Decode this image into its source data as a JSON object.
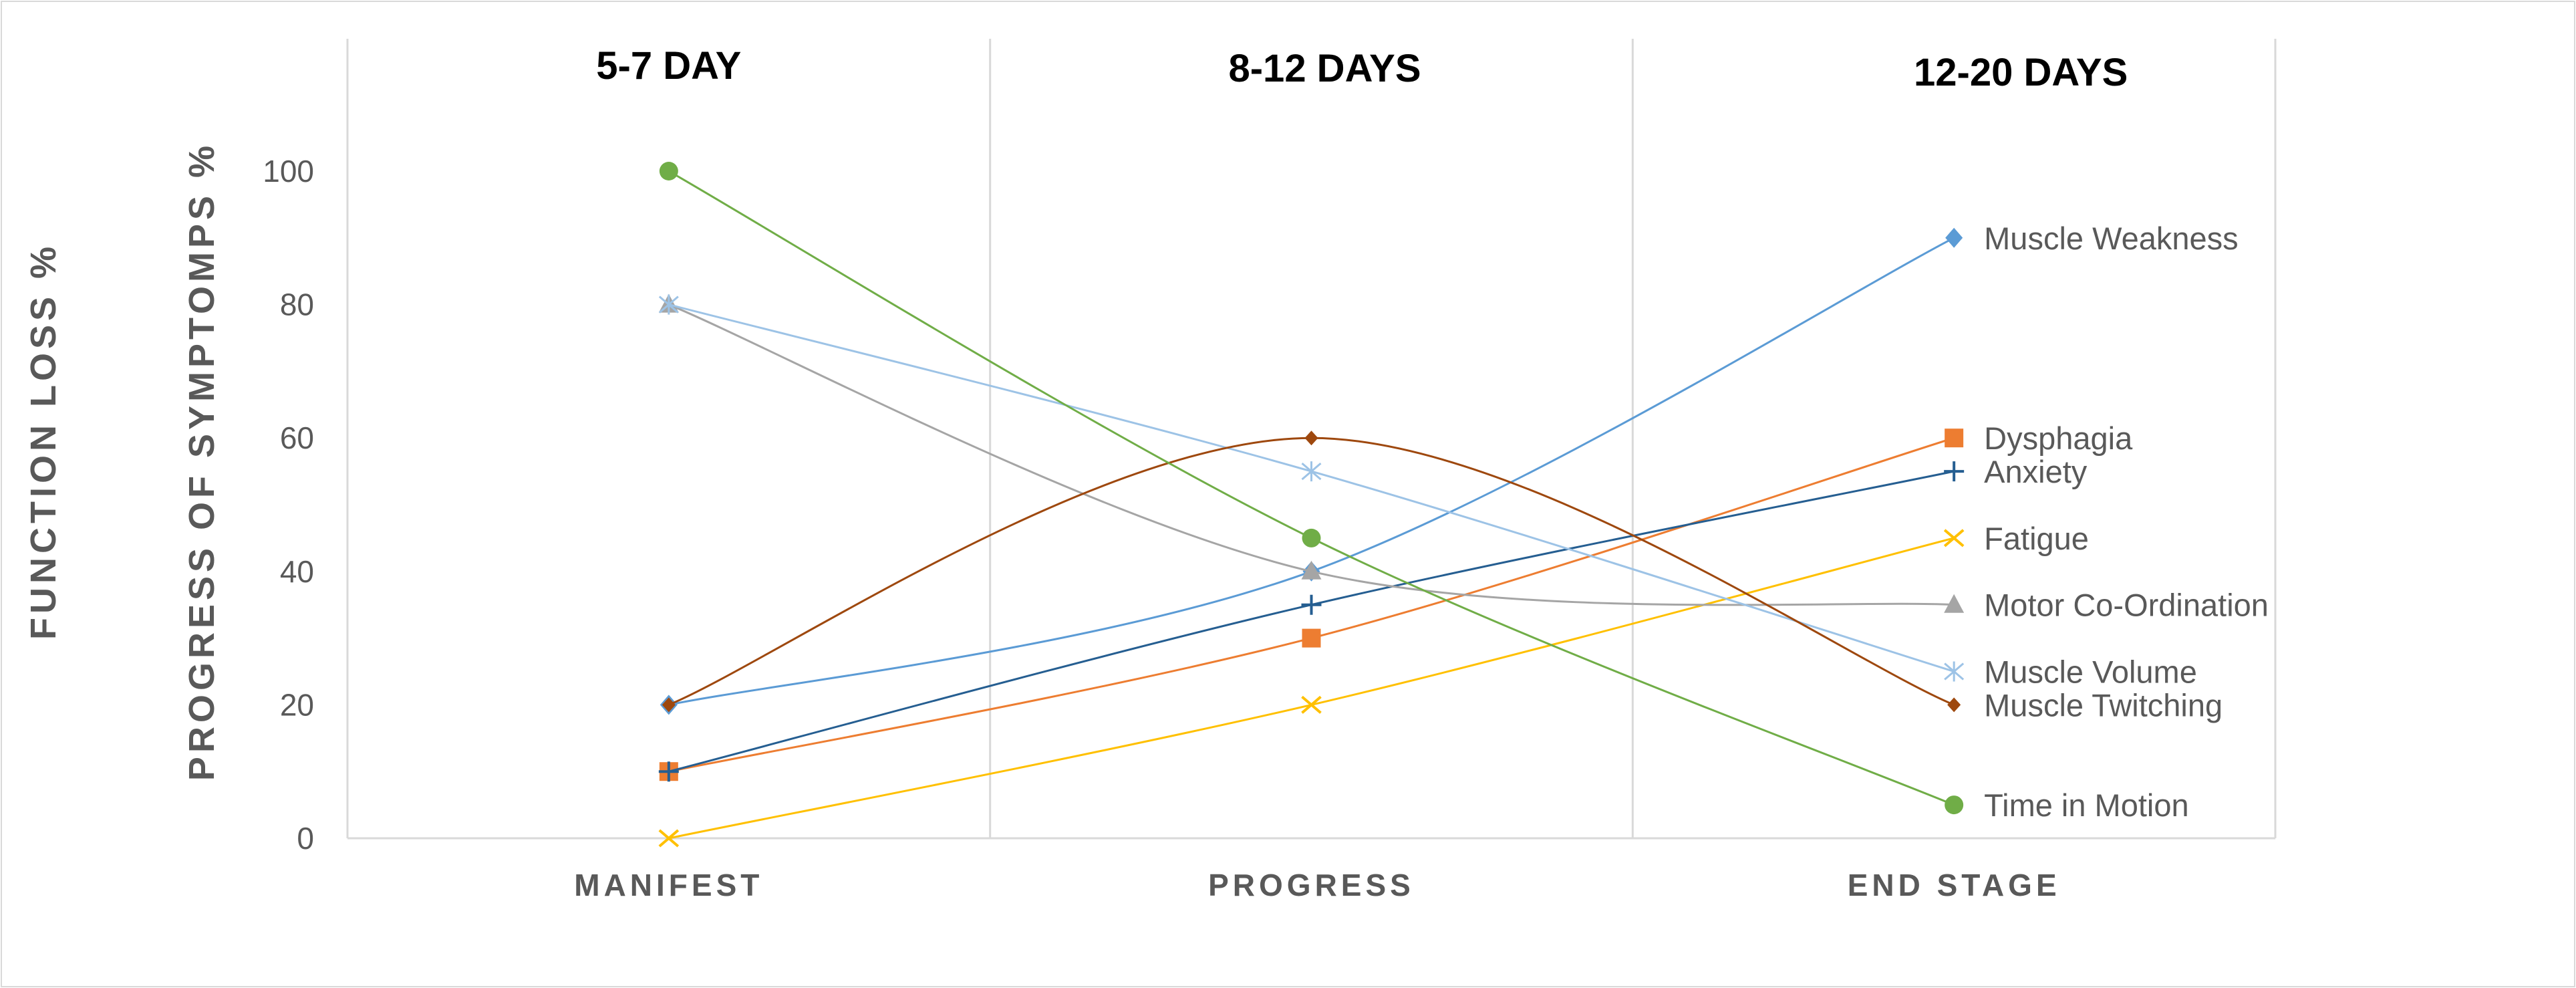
{
  "chart_data": {
    "type": "line",
    "categories": [
      "MANIFEST",
      "PROGRESS",
      "END  STAGE"
    ],
    "phase_labels": [
      "5-7 DAY",
      "8-12 DAYS",
      "12-20 DAYS"
    ],
    "ylabel_outer": "FUNCTION LOSS %",
    "ylabel_inner": "PROGRESS OF SYMPTOMPS %",
    "ylim": [
      0,
      100
    ],
    "yticks": [
      0,
      20,
      40,
      60,
      80,
      100
    ],
    "grid": "vertical lines between categories",
    "legend": "labels at end of each line (right)",
    "series": [
      {
        "name": "Muscle Weakness",
        "values": [
          20,
          40,
          90
        ],
        "color": "#5b9bd5",
        "marker": "diamond"
      },
      {
        "name": "Dysphagia",
        "values": [
          10,
          30,
          60
        ],
        "color": "#ed7d31",
        "marker": "square"
      },
      {
        "name": "Anxiety",
        "values": [
          10,
          35,
          55
        ],
        "color": "#255e91",
        "marker": "plus"
      },
      {
        "name": "Fatigue",
        "values": [
          0,
          20,
          45
        ],
        "color": "#ffc000",
        "marker": "x"
      },
      {
        "name": "Motor Co-Ordination",
        "values": [
          80,
          40,
          35
        ],
        "color": "#a5a5a5",
        "marker": "triangle"
      },
      {
        "name": "Muscle Volume",
        "values": [
          80,
          55,
          25
        ],
        "color": "#9dc3e6",
        "marker": "star"
      },
      {
        "name": "Muscle Twitching",
        "values": [
          20,
          60,
          20
        ],
        "color": "#9e480e",
        "marker": "dash-diamond"
      },
      {
        "name": "Time in Motion",
        "values": [
          100,
          45,
          5
        ],
        "color": "#70ad47",
        "marker": "circle"
      }
    ]
  }
}
